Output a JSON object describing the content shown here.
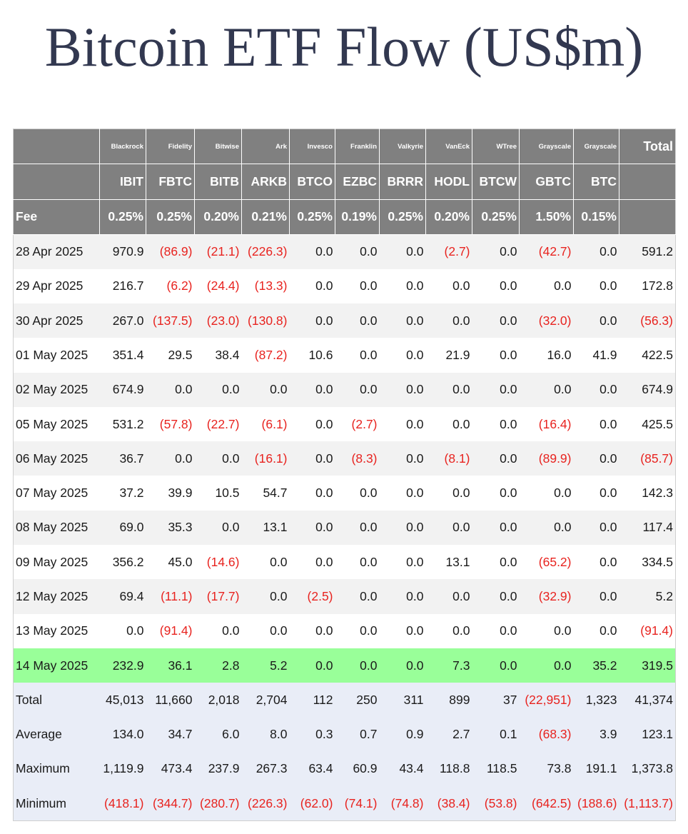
{
  "title": "Bitcoin ETF Flow (US$m)",
  "header": {
    "issuers": [
      "Blackrock",
      "Fidelity",
      "Bitwise",
      "Ark",
      "Invesco",
      "Franklin",
      "Valkyrie",
      "VanEck",
      "WTree",
      "Grayscale",
      "Grayscale"
    ],
    "total_label": "Total",
    "tickers": [
      "IBIT",
      "FBTC",
      "BITB",
      "ARKB",
      "BTCO",
      "EZBC",
      "BRRR",
      "HODL",
      "BTCW",
      "GBTC",
      "BTC"
    ],
    "fee_label": "Fee",
    "fees": [
      "0.25%",
      "0.25%",
      "0.20%",
      "0.21%",
      "0.25%",
      "0.19%",
      "0.25%",
      "0.20%",
      "0.25%",
      "1.50%",
      "0.15%"
    ]
  },
  "rows": [
    [
      "28 Apr 2025",
      "970.9",
      "(86.9)",
      "(21.1)",
      "(226.3)",
      "0.0",
      "0.0",
      "0.0",
      "(2.7)",
      "0.0",
      "(42.7)",
      "0.0",
      "591.2"
    ],
    [
      "29 Apr 2025",
      "216.7",
      "(6.2)",
      "(24.4)",
      "(13.3)",
      "0.0",
      "0.0",
      "0.0",
      "0.0",
      "0.0",
      "0.0",
      "0.0",
      "172.8"
    ],
    [
      "30 Apr 2025",
      "267.0",
      "(137.5)",
      "(23.0)",
      "(130.8)",
      "0.0",
      "0.0",
      "0.0",
      "0.0",
      "0.0",
      "(32.0)",
      "0.0",
      "(56.3)"
    ],
    [
      "01 May 2025",
      "351.4",
      "29.5",
      "38.4",
      "(87.2)",
      "10.6",
      "0.0",
      "0.0",
      "21.9",
      "0.0",
      "16.0",
      "41.9",
      "422.5"
    ],
    [
      "02 May 2025",
      "674.9",
      "0.0",
      "0.0",
      "0.0",
      "0.0",
      "0.0",
      "0.0",
      "0.0",
      "0.0",
      "0.0",
      "0.0",
      "674.9"
    ],
    [
      "05 May 2025",
      "531.2",
      "(57.8)",
      "(22.7)",
      "(6.1)",
      "0.0",
      "(2.7)",
      "0.0",
      "0.0",
      "0.0",
      "(16.4)",
      "0.0",
      "425.5"
    ],
    [
      "06 May 2025",
      "36.7",
      "0.0",
      "0.0",
      "(16.1)",
      "0.0",
      "(8.3)",
      "0.0",
      "(8.1)",
      "0.0",
      "(89.9)",
      "0.0",
      "(85.7)"
    ],
    [
      "07 May 2025",
      "37.2",
      "39.9",
      "10.5",
      "54.7",
      "0.0",
      "0.0",
      "0.0",
      "0.0",
      "0.0",
      "0.0",
      "0.0",
      "142.3"
    ],
    [
      "08 May 2025",
      "69.0",
      "35.3",
      "0.0",
      "13.1",
      "0.0",
      "0.0",
      "0.0",
      "0.0",
      "0.0",
      "0.0",
      "0.0",
      "117.4"
    ],
    [
      "09 May 2025",
      "356.2",
      "45.0",
      "(14.6)",
      "0.0",
      "0.0",
      "0.0",
      "0.0",
      "13.1",
      "0.0",
      "(65.2)",
      "0.0",
      "334.5"
    ],
    [
      "12 May 2025",
      "69.4",
      "(11.1)",
      "(17.7)",
      "0.0",
      "(2.5)",
      "0.0",
      "0.0",
      "0.0",
      "0.0",
      "(32.9)",
      "0.0",
      "5.2"
    ],
    [
      "13 May 2025",
      "0.0",
      "(91.4)",
      "0.0",
      "0.0",
      "0.0",
      "0.0",
      "0.0",
      "0.0",
      "0.0",
      "0.0",
      "0.0",
      "(91.4)"
    ],
    [
      "14 May 2025",
      "232.9",
      "36.1",
      "2.8",
      "5.2",
      "0.0",
      "0.0",
      "0.0",
      "7.3",
      "0.0",
      "0.0",
      "35.2",
      "319.5"
    ]
  ],
  "summary": [
    [
      "Total",
      "45,013",
      "11,660",
      "2,018",
      "2,704",
      "112",
      "250",
      "311",
      "899",
      "37",
      "(22,951)",
      "1,323",
      "41,374"
    ],
    [
      "Average",
      "134.0",
      "34.7",
      "6.0",
      "8.0",
      "0.3",
      "0.7",
      "0.9",
      "2.7",
      "0.1",
      "(68.3)",
      "3.9",
      "123.1"
    ],
    [
      "Maximum",
      "1,119.9",
      "473.4",
      "237.9",
      "267.3",
      "63.4",
      "60.9",
      "43.4",
      "118.8",
      "118.5",
      "73.8",
      "191.1",
      "1,373.8"
    ],
    [
      "Minimum",
      "(418.1)",
      "(344.7)",
      "(280.7)",
      "(226.3)",
      "(62.0)",
      "(74.1)",
      "(74.8)",
      "(38.4)",
      "(53.8)",
      "(642.5)",
      "(188.6)",
      "(1,113.7)"
    ]
  ]
}
